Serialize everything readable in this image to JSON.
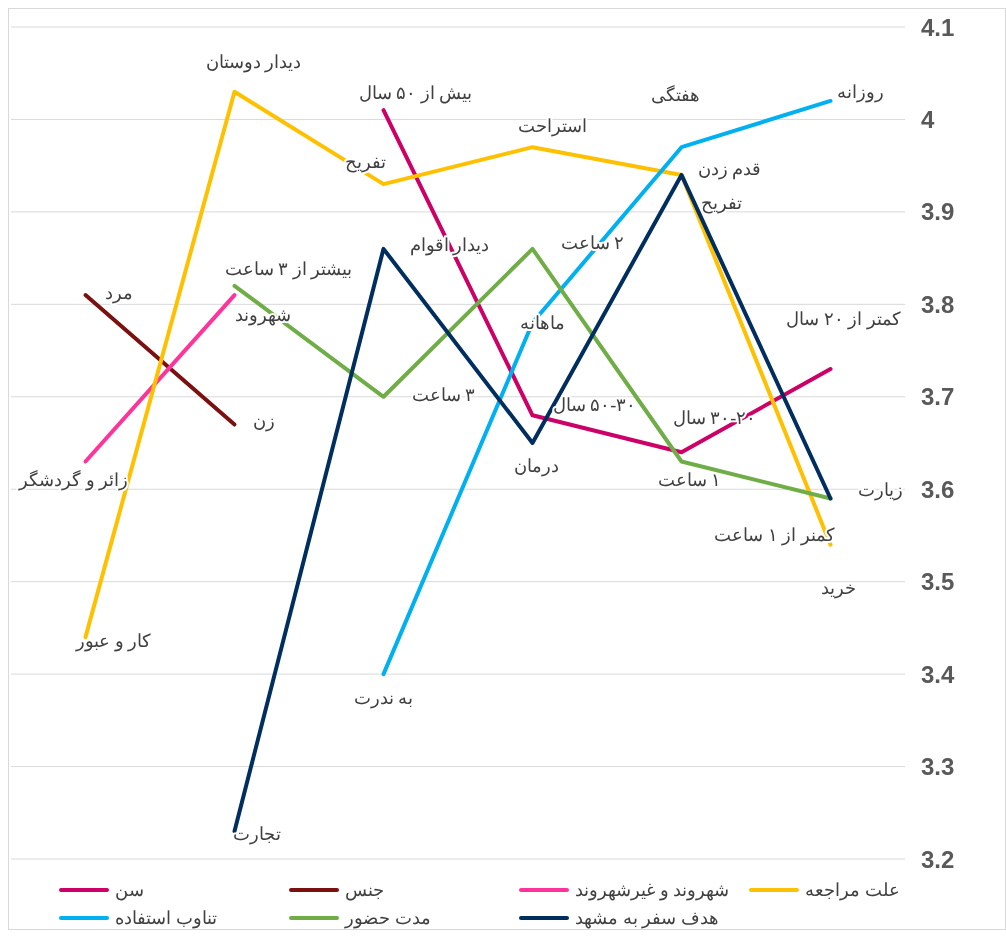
{
  "chart_data": {
    "type": "line",
    "categories": [
      null,
      null,
      null,
      null,
      null,
      null
    ],
    "series": [
      {
        "name": "سن",
        "color": "#cc0066",
        "values": [
          null,
          null,
          4.01,
          3.68,
          3.64,
          3.73
        ]
      },
      {
        "name": "جنس",
        "color": "#7b1010",
        "values": [
          3.81,
          3.67,
          null,
          null,
          null,
          null
        ]
      },
      {
        "name": "شهروند و غیرشهروند",
        "color": "#ff3399",
        "values": [
          3.63,
          3.81,
          null,
          null,
          null,
          null
        ]
      },
      {
        "name": "علت مراجعه",
        "color": "#ffc000",
        "values": [
          3.44,
          4.03,
          3.93,
          3.97,
          3.94,
          3.54
        ]
      },
      {
        "name": "تناوب استفاده",
        "color": "#00b0f0",
        "values": [
          null,
          null,
          3.4,
          3.78,
          3.97,
          4.02
        ]
      },
      {
        "name": "مدت حضور",
        "color": "#70ad47",
        "values": [
          null,
          3.82,
          3.7,
          3.86,
          3.63,
          3.59
        ]
      },
      {
        "name": "هدف سفر به مشهد",
        "color": "#002f5f",
        "values": [
          null,
          3.23,
          3.86,
          3.65,
          3.94,
          3.59
        ]
      }
    ],
    "annotations": [
      "بیش از ۵۰ سال",
      "۵۰-۳۰ سال",
      "۳۰-۲۰ سال",
      "کمتر از ۲۰ سال",
      "مرد",
      "زن",
      "زائر و گردشگر",
      "شهروند",
      "کار و عبور",
      "دیدار دوستان",
      "تفریح",
      "استراحت",
      "قدم زدن",
      "خرید",
      "به ندرت",
      "ماهانه",
      "هفتگی",
      "روزانه",
      "بیشتر از ۳ ساعت",
      "۳ ساعت",
      "۲ ساعت",
      "۱ ساعت",
      "کمنر از ۱ ساعت",
      "تجارت",
      "دیدار اقوام",
      "درمان",
      "تفریح",
      "زیارت"
    ],
    "ylim": [
      3.2,
      4.1
    ],
    "yticks": [
      3.2,
      3.3,
      3.4,
      3.5,
      3.6,
      3.7,
      3.8,
      3.9,
      4,
      4.1
    ],
    "grid": "y",
    "legend": "bottom",
    "marker": "none",
    "line_style": "solid"
  }
}
